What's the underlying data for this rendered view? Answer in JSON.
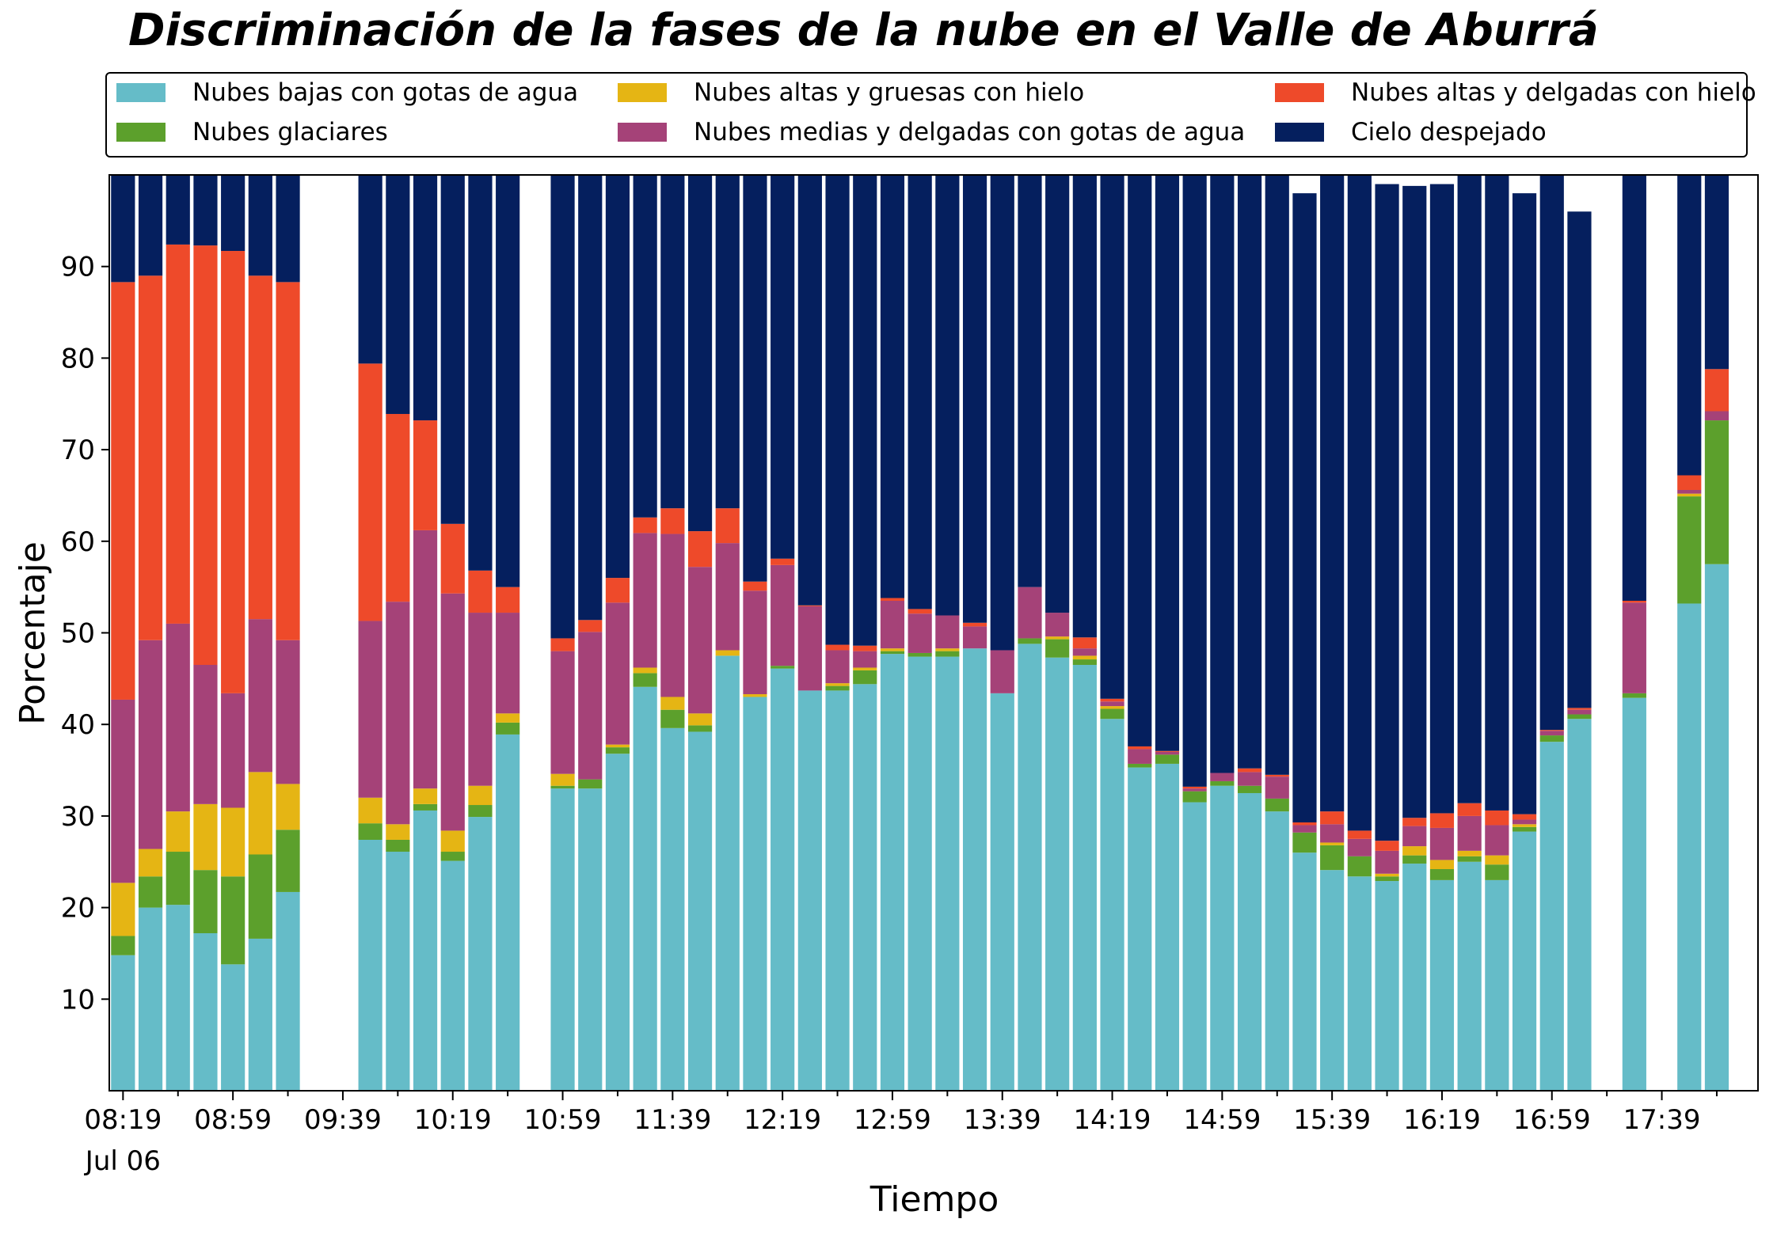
{
  "chart_data": {
    "type": "bar",
    "stacked": true,
    "title": "Discriminación de la fases de la nube en el Valle de Aburrá",
    "xlabel": "Tiempo",
    "ylabel": "Porcentaje",
    "ylim": [
      0,
      100
    ],
    "yticks": [
      10,
      20,
      30,
      40,
      50,
      60,
      70,
      80,
      90
    ],
    "grid": false,
    "legend_position": "top",
    "x_start": "08:19",
    "x_step_minutes": 10,
    "x_count": 60,
    "x_tick_labels": [
      "08:19\nJul 06",
      "08:59",
      "09:39",
      "10:19",
      "10:59",
      "11:39",
      "12:19",
      "12:59",
      "13:39",
      "14:19",
      "14:59",
      "15:39",
      "16:19",
      "16:59",
      "17:39"
    ],
    "categories": [
      "08:19",
      "08:29",
      "08:39",
      "08:49",
      "08:59",
      "09:09",
      "09:19",
      "09:29",
      "09:39",
      "09:49",
      "09:59",
      "10:09",
      "10:19",
      "10:29",
      "10:39",
      "10:49",
      "10:59",
      "11:09",
      "11:19",
      "11:29",
      "11:39",
      "11:49",
      "11:59",
      "12:09",
      "12:19",
      "12:29",
      "12:39",
      "12:49",
      "12:59",
      "13:09",
      "13:19",
      "13:29",
      "13:39",
      "13:49",
      "13:59",
      "14:09",
      "14:19",
      "14:29",
      "14:39",
      "14:49",
      "14:59",
      "15:09",
      "15:19",
      "15:29",
      "15:39",
      "15:49",
      "15:59",
      "16:09",
      "16:19",
      "16:29",
      "16:39",
      "16:49",
      "16:59",
      "17:09",
      "17:19",
      "17:29",
      "17:39",
      "17:49",
      "17:59",
      "18:09"
    ],
    "series": [
      {
        "name": "Nubes bajas con gotas de agua",
        "color": "#65bcc8",
        "values": [
          14.8,
          20.0,
          20.3,
          17.2,
          13.8,
          16.6,
          21.7,
          null,
          null,
          27.4,
          26.1,
          30.6,
          25.1,
          29.9,
          38.9,
          null,
          33.0,
          33.0,
          36.8,
          44.1,
          39.6,
          39.2,
          47.5,
          43.0,
          46.1,
          43.7,
          43.7,
          44.4,
          47.7,
          47.4,
          47.4,
          48.3,
          43.4,
          48.8,
          47.3,
          46.5,
          40.6,
          35.3,
          35.7,
          31.5,
          33.3,
          32.5,
          30.5,
          26.0,
          24.1,
          23.4,
          22.9,
          24.8,
          23.0,
          25.0,
          23.0,
          28.3,
          38.1,
          40.6,
          null,
          42.9,
          null,
          53.2,
          57.5,
          null
        ]
      },
      {
        "name": "Nubes glaciares",
        "color": "#5ca02c",
        "values": [
          2.1,
          3.4,
          5.8,
          6.9,
          9.6,
          9.2,
          6.8,
          null,
          null,
          1.8,
          1.3,
          0.7,
          1.0,
          1.3,
          1.3,
          null,
          0.3,
          1.0,
          0.7,
          1.5,
          2.0,
          0.7,
          0,
          0,
          0.3,
          0,
          0.5,
          1.5,
          0.3,
          0.4,
          0.6,
          0,
          0,
          0.6,
          2.0,
          0.6,
          1.1,
          0.4,
          1.0,
          1.2,
          0.5,
          0.8,
          1.4,
          2.2,
          2.7,
          2.2,
          0.5,
          0.9,
          1.2,
          0.6,
          1.7,
          0.5,
          0.7,
          0.5,
          null,
          0.5,
          null,
          11.7,
          15.7,
          null
        ]
      },
      {
        "name": "Nubes altas y gruesas con hielo",
        "color": "#e5b514",
        "values": [
          5.8,
          3.0,
          4.4,
          7.2,
          7.5,
          9.0,
          5.0,
          null,
          null,
          2.8,
          1.7,
          1.7,
          2.3,
          2.1,
          1.0,
          null,
          1.3,
          0,
          0.3,
          0.6,
          1.4,
          1.3,
          0.6,
          0.3,
          0,
          0,
          0.3,
          0.3,
          0.3,
          0,
          0.3,
          0,
          0,
          0,
          0.3,
          0.4,
          0.3,
          0,
          0,
          0,
          0,
          0,
          0,
          0,
          0.3,
          0,
          0.3,
          1.0,
          1.0,
          0.6,
          1.0,
          0.3,
          0,
          0,
          null,
          0,
          null,
          0.3,
          0,
          null
        ]
      },
      {
        "name": "Nubes medias y delgadas con gotas de agua",
        "color": "#a54278",
        "values": [
          20.0,
          22.8,
          20.5,
          15.2,
          12.5,
          16.7,
          15.7,
          null,
          null,
          19.3,
          24.3,
          28.2,
          25.9,
          18.9,
          11.0,
          null,
          13.4,
          16.1,
          15.5,
          14.7,
          17.8,
          16.0,
          11.7,
          11.3,
          11.0,
          9.2,
          3.6,
          1.8,
          5.2,
          4.3,
          3.6,
          2.4,
          4.7,
          5.6,
          2.6,
          0.8,
          0.5,
          1.6,
          0.3,
          0.3,
          0.9,
          1.5,
          2.4,
          0.8,
          2.0,
          1.9,
          2.5,
          2.2,
          3.5,
          3.8,
          3.3,
          0.5,
          0.5,
          0.5,
          null,
          9.9,
          null,
          0.4,
          1.0,
          null
        ]
      },
      {
        "name": "Nubes altas y delgadas con hielo",
        "color": "#ee4a2a",
        "values": [
          45.6,
          39.8,
          41.4,
          45.8,
          48.3,
          37.5,
          39.1,
          null,
          null,
          28.1,
          20.5,
          12.0,
          7.6,
          4.6,
          2.8,
          null,
          1.4,
          1.3,
          2.7,
          1.7,
          2.8,
          3.9,
          3.8,
          1.0,
          0.7,
          0.1,
          0.6,
          0.6,
          0.3,
          0.5,
          0,
          0.4,
          0,
          0,
          0,
          1.2,
          0.3,
          0.3,
          0.1,
          0.2,
          0,
          0.4,
          0.2,
          0.3,
          1.4,
          0.9,
          1.1,
          0.9,
          1.6,
          1.4,
          1.6,
          0.6,
          0.1,
          0.2,
          null,
          0.2,
          null,
          1.6,
          4.6,
          null
        ]
      },
      {
        "name": "Cielo despejado",
        "color": "#051f5e",
        "values": [
          11.7,
          11.0,
          7.6,
          7.7,
          8.3,
          11.0,
          11.7,
          null,
          null,
          20.6,
          26.1,
          26.8,
          38.1,
          43.2,
          45.0,
          null,
          50.6,
          48.6,
          44.0,
          37.4,
          36.4,
          38.9,
          36.4,
          44.4,
          41.9,
          47.0,
          51.3,
          51.4,
          46.2,
          47.4,
          48.1,
          48.9,
          51.9,
          45.0,
          47.8,
          50.5,
          57.2,
          62.4,
          62.9,
          66.8,
          65.3,
          64.8,
          65.5,
          68.7,
          69.5,
          71.6,
          71.7,
          69.0,
          68.7,
          68.6,
          69.4,
          67.8,
          60.6,
          54.2,
          null,
          46.5,
          null,
          32.8,
          21.2,
          null
        ]
      }
    ]
  }
}
